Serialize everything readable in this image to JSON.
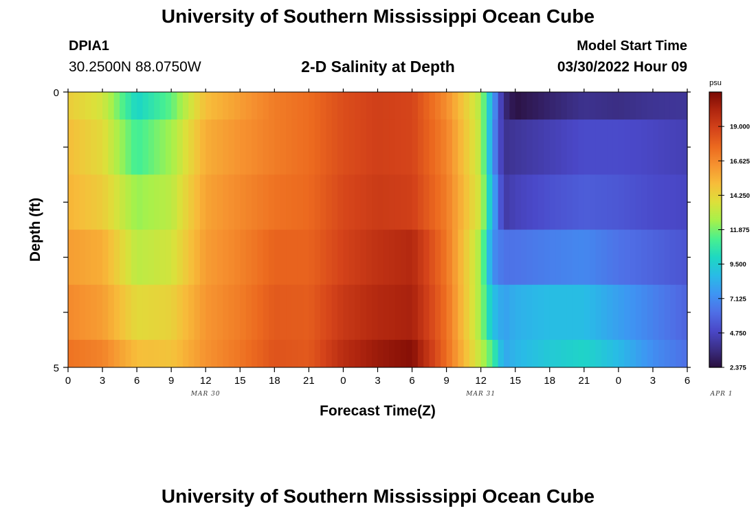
{
  "page": {
    "title_top": "University of Southern Mississippi Ocean Cube",
    "title_bottom": "University of Southern Mississippi Ocean Cube",
    "station_id": "DPIA1",
    "station_coords": "30.2500N  88.0750W",
    "plot_title": "2-D Salinity at Depth",
    "model_start_label": "Model Start Time",
    "model_start_value": "03/30/2022 Hour 09"
  },
  "chart_data": {
    "type": "heatmap",
    "title": "2-D Salinity at Depth",
    "xlabel": "Forecast Time(Z)",
    "ylabel": "Depth (ft)",
    "x_tick_labels": [
      "0",
      "3",
      "6",
      "9",
      "12",
      "15",
      "18",
      "21",
      "0",
      "3",
      "6",
      "9",
      "12",
      "15",
      "18",
      "21",
      "0",
      "3",
      "6"
    ],
    "date_labels": [
      {
        "text": "MAR 30",
        "at_hour": 12
      },
      {
        "text": "MAR 31",
        "at_hour": 36
      },
      {
        "text": "APR 1",
        "at_hour": 57
      }
    ],
    "y_tick_labels": [
      "0",
      "5"
    ],
    "xlim_hours": [
      0,
      54
    ],
    "ylim_ft": [
      0,
      5
    ],
    "depth_layers_ft": [
      0,
      1,
      2,
      3,
      4,
      5
    ],
    "colorbar": {
      "unit": "psu",
      "min": 2.375,
      "max": 21.375,
      "tick_labels": [
        "19.000",
        "16.625",
        "14.250",
        "11.875",
        "9.500",
        "7.125",
        "4.750",
        "2.375"
      ],
      "tick_values": [
        19.0,
        16.625,
        14.25,
        11.875,
        9.5,
        7.125,
        4.75,
        2.375
      ],
      "colors": [
        "#2a0f3e",
        "#3b2f86",
        "#4a48c8",
        "#4f6fe6",
        "#3e95f3",
        "#29bbe6",
        "#1ed8c2",
        "#49f08f",
        "#a6f14b",
        "#dde03a",
        "#f7bd3a",
        "#f69330",
        "#ec6a1f",
        "#d4431a",
        "#b0260f",
        "#7a0904"
      ]
    },
    "hour_samples": [
      0,
      3,
      6,
      9,
      12,
      15,
      18,
      21,
      24,
      27,
      30,
      33,
      36,
      37,
      38,
      39,
      42,
      45,
      48,
      51,
      54
    ],
    "series": [
      {
        "name": "layer 0-1 ft",
        "values": [
          14.5,
          13.5,
          9.8,
          11.5,
          15.0,
          16.0,
          17.0,
          17.5,
          18.5,
          19.0,
          18.8,
          16.5,
          12.8,
          8.0,
          3.5,
          2.5,
          3.2,
          3.8,
          3.6,
          3.9,
          4.0
        ]
      },
      {
        "name": "layer 1-2 ft",
        "values": [
          15.0,
          14.0,
          11.0,
          12.5,
          15.5,
          16.3,
          17.0,
          17.5,
          18.5,
          19.0,
          18.8,
          16.8,
          13.0,
          7.5,
          3.8,
          4.0,
          4.5,
          5.0,
          5.0,
          4.8,
          4.5
        ]
      },
      {
        "name": "layer 2-3 ft",
        "values": [
          15.3,
          14.5,
          12.3,
          13.0,
          15.8,
          16.6,
          17.3,
          17.6,
          18.7,
          19.2,
          19.0,
          17.0,
          13.3,
          8.5,
          4.2,
          4.6,
          5.2,
          5.6,
          5.4,
          5.0,
          4.8
        ]
      },
      {
        "name": "layer 3-4 ft",
        "values": [
          16.0,
          15.5,
          13.0,
          13.5,
          16.0,
          16.8,
          17.8,
          17.8,
          18.9,
          19.6,
          20.0,
          17.2,
          12.5,
          7.3,
          6.3,
          6.3,
          6.7,
          7.0,
          6.3,
          5.8,
          5.3
        ]
      },
      {
        "name": "layer 4-5 ft",
        "values": [
          16.6,
          16.0,
          14.0,
          14.3,
          16.2,
          17.0,
          18.1,
          18.0,
          19.3,
          20.0,
          20.3,
          17.4,
          12.5,
          9.0,
          7.8,
          8.3,
          8.8,
          8.8,
          7.8,
          6.8,
          5.8
        ]
      },
      {
        "name": "layer 5 ft",
        "values": [
          17.3,
          16.8,
          15.0,
          14.8,
          16.3,
          17.2,
          18.3,
          18.1,
          19.8,
          20.6,
          21.1,
          17.5,
          13.0,
          11.2,
          8.0,
          8.5,
          9.3,
          9.8,
          8.7,
          7.2,
          6.2
        ]
      }
    ]
  }
}
